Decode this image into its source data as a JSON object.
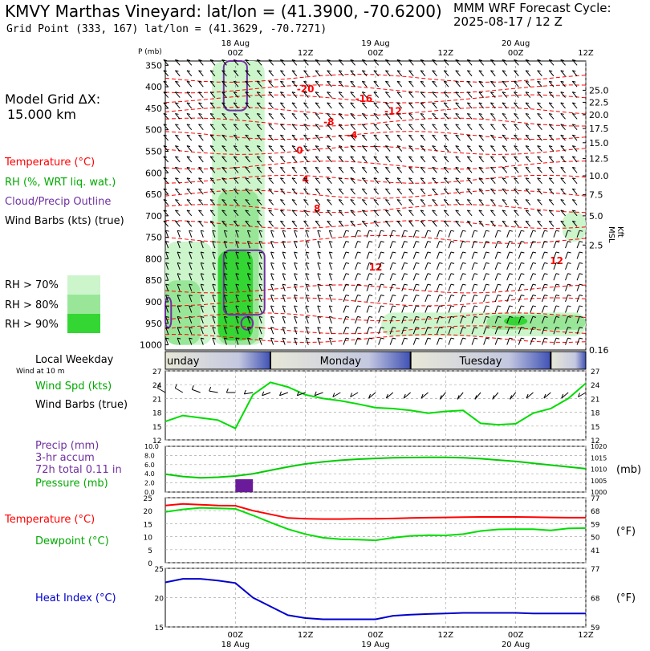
{
  "header": {
    "title": "KMVY Marthas Vineyard:  lat/lon = (41.3900, -70.6200)",
    "grid_point": "Grid Point (333, 167) lat/lon = (41.3629, -70.7271)",
    "cycle_line1": "MMM WRF Forecast Cycle:",
    "cycle_line2": "2025-08-17 / 12  Z"
  },
  "left_labels": {
    "model_grid_line1": "Model Grid ΔX:",
    "model_grid_line2": "15.000 km",
    "temperature": "Temperature (°C)",
    "rh": "RH (%, WRT liq. wat.)",
    "cloud": "Cloud/Precip Outline",
    "wind_barbs": "Wind Barbs (kts) (true)",
    "rh_legend": [
      "RH > 70%",
      "RH > 80%",
      "RH > 90%"
    ],
    "local_weekday": "Local Weekday",
    "wind_10m": "Wind at 10 m",
    "wind_spd": "Wind Spd (kts)",
    "wind_barbs_true": "Wind Barbs (true)",
    "precip": "Precip (mm)",
    "precip_accum": "3-hr accum",
    "precip_total": "72h total 0.11 in",
    "pressure": "Pressure (mb)",
    "temperature2": "Temperature (°C)",
    "dewpoint": "Dewpoint (°C)",
    "heat_index": "Heat Index (°C)"
  },
  "right_labels": {
    "kft_msl": "Kft MSL",
    "mb": "(mb)",
    "degF_1": "(°F)",
    "degF_2": "(°F)"
  },
  "colors": {
    "temperature": "#ff0000",
    "dewpoint": "#00cc00",
    "rh70": "#ccf5cc",
    "rh80": "#99e699",
    "rh90": "#33d633",
    "cloud": "#7030a0",
    "precip": "#6a1b9a",
    "heat_index": "#0000cc",
    "weekday_band": "#3f51b5"
  },
  "chart_data": [
    {
      "type": "heatmap",
      "name": "cross-section",
      "x_ticks": [
        "18 Aug",
        "00Z",
        "12Z",
        "19 Aug",
        "00Z",
        "12Z",
        "20 Aug",
        "00Z",
        "12Z"
      ],
      "time_ticks": [
        {
          "h": 12,
          "label": "00Z",
          "day": "18 Aug"
        },
        {
          "h": 24,
          "label": "12Z",
          "day": ""
        },
        {
          "h": 36,
          "label": "00Z",
          "day": "19 Aug"
        },
        {
          "h": 48,
          "label": "12Z",
          "day": ""
        },
        {
          "h": 60,
          "label": "00Z",
          "day": "20 Aug"
        },
        {
          "h": 72,
          "label": "12Z",
          "day": ""
        }
      ],
      "ylabel": "P (mb)",
      "pressure_levels": [
        350,
        400,
        450,
        500,
        550,
        600,
        650,
        700,
        750,
        800,
        850,
        900,
        950,
        1000
      ],
      "height_axis": [
        "25.0",
        "22.5",
        "20.0",
        "17.5",
        "15.0",
        "12.5",
        "10.0",
        "7.5",
        "5.0",
        "2.5",
        "0.16"
      ],
      "height_axis_p": [
        408,
        436,
        465,
        497,
        530,
        567,
        607,
        651,
        700,
        768,
        1012
      ],
      "temperature_labels": [
        {
          "label": "-20",
          "h": 24,
          "p": 405
        },
        {
          "label": "-16",
          "h": 34,
          "p": 428
        },
        {
          "label": "-12",
          "h": 39,
          "p": 457
        },
        {
          "label": "-8",
          "h": 28,
          "p": 482
        },
        {
          "label": "-4",
          "h": 32,
          "p": 513
        },
        {
          "label": "0",
          "h": 23,
          "p": 548
        },
        {
          "label": "4",
          "h": 24,
          "p": 615
        },
        {
          "label": "8",
          "h": 26,
          "p": 683
        },
        {
          "label": "12",
          "h": 36,
          "p": 820
        },
        {
          "label": "12",
          "h": 67,
          "p": 805
        }
      ],
      "temperature_isotherm_p": [
        380,
        405,
        428,
        457,
        482,
        513,
        548,
        582,
        615,
        650,
        683,
        720,
        755,
        870,
        900,
        935,
        965,
        985
      ],
      "rh_regions": [
        {
          "level": 70,
          "h0": 8,
          "h1": 17,
          "p0": 340,
          "p1": 1000
        },
        {
          "level": 80,
          "h0": 9,
          "h1": 16,
          "p0": 640,
          "p1": 1000
        },
        {
          "level": 90,
          "h0": 9,
          "h1": 15,
          "p0": 780,
          "p1": 990
        },
        {
          "level": 70,
          "h0": 37,
          "h1": 72,
          "p0": 925,
          "p1": 980
        },
        {
          "level": 80,
          "h0": 55,
          "h1": 72,
          "p0": 930,
          "p1": 965
        },
        {
          "level": 90,
          "h0": 58,
          "h1": 62,
          "p0": 935,
          "p1": 955
        },
        {
          "level": 70,
          "h0": 68,
          "h1": 72,
          "p0": 690,
          "p1": 760
        },
        {
          "level": 70,
          "h0": 0,
          "h1": 8,
          "p0": 760,
          "p1": 1000
        },
        {
          "level": 80,
          "h0": 0,
          "h1": 6,
          "p0": 850,
          "p1": 1000
        }
      ],
      "cloud_outlines": [
        {
          "h0": 10,
          "h1": 14,
          "p0": 340,
          "p1": 455
        },
        {
          "h0": 10,
          "h1": 17,
          "p0": 780,
          "p1": 930
        },
        {
          "h0": 13,
          "h1": 15,
          "p0": 935,
          "p1": 965
        },
        {
          "h0": 0,
          "h1": 1,
          "p0": 890,
          "p1": 960
        }
      ]
    },
    {
      "type": "bar",
      "name": "local-weekday",
      "categories": [
        "unday",
        "Monday",
        "Tuesday"
      ]
    },
    {
      "type": "line",
      "name": "wind-speed",
      "ylabel": "Wind Spd (kts)",
      "ylim": [
        12,
        27
      ],
      "yticks": [
        12,
        15,
        18,
        21,
        24,
        27
      ],
      "x": [
        0,
        3,
        6,
        9,
        12,
        15,
        18,
        21,
        24,
        27,
        30,
        33,
        36,
        39,
        42,
        45,
        48,
        51,
        54,
        57,
        60,
        63,
        66,
        69,
        72
      ],
      "series": [
        {
          "values": [
            16.0,
            17.3,
            16.8,
            16.3,
            14.5,
            21.8,
            24.5,
            23.5,
            21.8,
            21.0,
            20.5,
            19.8,
            19.0,
            18.8,
            18.4,
            17.8,
            18.2,
            18.4,
            15.6,
            15.3,
            15.5,
            17.8,
            18.8,
            21.0,
            24.3
          ]
        }
      ],
      "barb_directions_deg": [
        300,
        300,
        290,
        280,
        270,
        260,
        250,
        250,
        250,
        250,
        240,
        240,
        230,
        230,
        230,
        230,
        220,
        220,
        220,
        220,
        220,
        230,
        230,
        230,
        240
      ]
    },
    {
      "type": "bar",
      "name": "precipitation",
      "ylabel": "Precip (mm)",
      "ylim": [
        0,
        10
      ],
      "yticks": [
        0.0,
        2.0,
        4.0,
        6.0,
        8.0,
        10.0
      ],
      "bars": [
        {
          "h0": 12,
          "h1": 15,
          "value": 2.8
        }
      ]
    },
    {
      "type": "line",
      "name": "pressure",
      "ylabel": "Pressure (mb)",
      "ylim": [
        1000,
        1020
      ],
      "yticks": [
        1000,
        1005,
        1010,
        1015,
        1020
      ],
      "x": [
        0,
        3,
        6,
        9,
        12,
        15,
        18,
        21,
        24,
        27,
        30,
        33,
        36,
        39,
        42,
        45,
        48,
        51,
        54,
        57,
        60,
        63,
        66,
        69,
        72
      ],
      "series": [
        {
          "values": [
            1007.8,
            1006.8,
            1006.2,
            1006.5,
            1007.0,
            1008.0,
            1009.5,
            1011.0,
            1012.3,
            1013.2,
            1013.9,
            1014.4,
            1014.7,
            1015.0,
            1015.1,
            1015.2,
            1015.2,
            1015.0,
            1014.6,
            1014.0,
            1013.4,
            1012.6,
            1011.8,
            1011.0,
            1010.2
          ]
        }
      ]
    },
    {
      "type": "line",
      "name": "temperature-dewpoint",
      "ylim": [
        0,
        25
      ],
      "yticks": [
        0,
        5,
        10,
        15,
        20,
        25
      ],
      "fticks": [
        41,
        50,
        59,
        68,
        77
      ],
      "x": [
        0,
        3,
        6,
        9,
        12,
        15,
        18,
        21,
        24,
        27,
        30,
        33,
        36,
        39,
        42,
        45,
        48,
        51,
        54,
        57,
        60,
        63,
        66,
        69,
        72
      ],
      "series": [
        {
          "name": "Temperature (°C)",
          "values": [
            22.0,
            22.6,
            22.3,
            22.0,
            21.9,
            20.0,
            18.6,
            17.2,
            16.9,
            16.8,
            16.8,
            16.9,
            16.9,
            17.0,
            17.2,
            17.3,
            17.4,
            17.5,
            17.6,
            17.6,
            17.6,
            17.5,
            17.4,
            17.3,
            17.3
          ]
        },
        {
          "name": "Dewpoint (°C)",
          "values": [
            19.5,
            20.5,
            21.1,
            20.9,
            20.7,
            18.2,
            15.5,
            12.9,
            11.0,
            9.6,
            9.0,
            8.9,
            8.6,
            9.6,
            10.3,
            10.6,
            10.5,
            11.0,
            12.2,
            12.8,
            12.9,
            12.9,
            12.4,
            13.2,
            13.3
          ]
        }
      ]
    },
    {
      "type": "line",
      "name": "heat-index",
      "ylim": [
        15,
        25
      ],
      "yticks": [
        15,
        20,
        25
      ],
      "fticks": [
        59,
        68,
        77
      ],
      "x": [
        0,
        3,
        6,
        9,
        12,
        15,
        18,
        21,
        24,
        27,
        30,
        33,
        36,
        39,
        42,
        45,
        48,
        51,
        54,
        57,
        60,
        63,
        66,
        69,
        72
      ],
      "series": [
        {
          "name": "Heat Index (°C)",
          "values": [
            22.6,
            23.2,
            23.2,
            22.9,
            22.5,
            20.0,
            18.5,
            17.0,
            16.5,
            16.3,
            16.3,
            16.3,
            16.3,
            16.9,
            17.1,
            17.2,
            17.3,
            17.4,
            17.4,
            17.4,
            17.4,
            17.3,
            17.3,
            17.3,
            17.3
          ]
        }
      ]
    }
  ]
}
